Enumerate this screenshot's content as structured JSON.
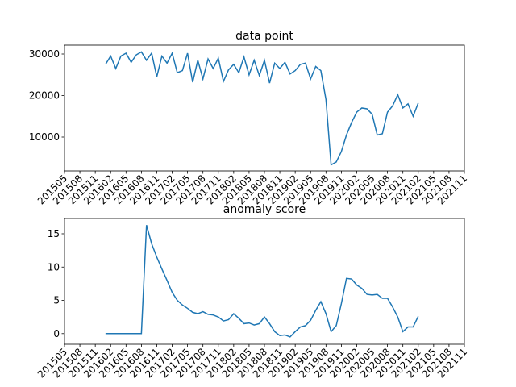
{
  "chart_data": [
    {
      "type": "line",
      "title": "data point",
      "color": "#1f77b4",
      "x": [
        "201601",
        "201602",
        "201603",
        "201604",
        "201605",
        "201606",
        "201607",
        "201608",
        "201609",
        "201610",
        "201611",
        "201612",
        "201701",
        "201702",
        "201703",
        "201704",
        "201705",
        "201706",
        "201707",
        "201708",
        "201709",
        "201710",
        "201711",
        "201712",
        "201801",
        "201802",
        "201803",
        "201804",
        "201805",
        "201806",
        "201807",
        "201808",
        "201809",
        "201810",
        "201811",
        "201812",
        "201901",
        "201902",
        "201903",
        "201904",
        "201905",
        "201906",
        "201907",
        "201908",
        "201909",
        "201910",
        "201911",
        "201912",
        "202001",
        "202002",
        "202003",
        "202004",
        "202005",
        "202006",
        "202007",
        "202008",
        "202009",
        "202010",
        "202011",
        "202012",
        "202101",
        "202102"
      ],
      "values": [
        27500,
        29500,
        26500,
        29500,
        30200,
        28000,
        29800,
        30500,
        28500,
        30200,
        24500,
        29500,
        27800,
        30200,
        25500,
        26000,
        30200,
        23200,
        28500,
        24000,
        28800,
        26500,
        29000,
        23400,
        26200,
        27500,
        25500,
        29300,
        25000,
        28500,
        24800,
        28500,
        23000,
        27800,
        26500,
        28000,
        25200,
        26000,
        27500,
        27800,
        24000,
        27000,
        26000,
        19000,
        3300,
        4000,
        6500,
        10500,
        13500,
        16000,
        17000,
        16800,
        15500,
        10500,
        10800,
        16000,
        17500,
        20200,
        17000,
        18000,
        15000,
        18200
      ],
      "xlim": [
        "201505",
        "202111"
      ],
      "xticks": [
        "201505",
        "201508",
        "201511",
        "201602",
        "201605",
        "201608",
        "201611",
        "201702",
        "201705",
        "201708",
        "201711",
        "201802",
        "201805",
        "201808",
        "201811",
        "201902",
        "201905",
        "201908",
        "201911",
        "202002",
        "202005",
        "202008",
        "202011",
        "202102",
        "202105",
        "202108",
        "202111"
      ],
      "ylim": [
        1845,
        32136
      ],
      "yticks": [
        10000,
        20000,
        30000
      ]
    },
    {
      "type": "line",
      "title": "anomaly score",
      "color": "#1f77b4",
      "x": [
        "201601",
        "201602",
        "201603",
        "201604",
        "201605",
        "201606",
        "201607",
        "201608",
        "201609",
        "201610",
        "201611",
        "201612",
        "201701",
        "201702",
        "201703",
        "201704",
        "201705",
        "201706",
        "201707",
        "201708",
        "201709",
        "201710",
        "201711",
        "201712",
        "201801",
        "201802",
        "201803",
        "201804",
        "201805",
        "201806",
        "201807",
        "201808",
        "201809",
        "201810",
        "201811",
        "201812",
        "201901",
        "201902",
        "201903",
        "201904",
        "201905",
        "201906",
        "201907",
        "201908",
        "201909",
        "201910",
        "201911",
        "201912",
        "202001",
        "202002",
        "202003",
        "202004",
        "202005",
        "202006",
        "202007",
        "202008",
        "202009",
        "202010",
        "202011",
        "202012",
        "202101",
        "202102"
      ],
      "values": [
        0,
        0,
        0,
        0,
        0,
        0,
        0,
        0,
        16.3,
        13.5,
        11.5,
        9.7,
        8.0,
        6.2,
        5.0,
        4.3,
        3.8,
        3.2,
        3.0,
        3.3,
        2.9,
        2.8,
        2.5,
        1.9,
        2.1,
        3.0,
        2.3,
        1.5,
        1.6,
        1.3,
        1.5,
        2.5,
        1.5,
        0.3,
        -0.3,
        -0.2,
        -0.5,
        0.3,
        1.0,
        1.2,
        2.0,
        3.5,
        4.8,
        3.0,
        0.3,
        1.2,
        4.5,
        8.3,
        8.2,
        7.3,
        6.8,
        5.9,
        5.8,
        5.9,
        5.3,
        5.3,
        4.0,
        2.5,
        0.3,
        1.0,
        1.0,
        2.6
      ],
      "xlim": [
        "201505",
        "202111"
      ],
      "xticks": [
        "201505",
        "201508",
        "201511",
        "201602",
        "201605",
        "201608",
        "201611",
        "201702",
        "201705",
        "201708",
        "201711",
        "201802",
        "201805",
        "201808",
        "201811",
        "201902",
        "201905",
        "201908",
        "201911",
        "202002",
        "202005",
        "202008",
        "202011",
        "202102",
        "202105",
        "202108",
        "202111"
      ],
      "ylim": [
        -1.6,
        17.3
      ],
      "yticks": [
        0,
        5,
        10,
        15
      ]
    }
  ]
}
